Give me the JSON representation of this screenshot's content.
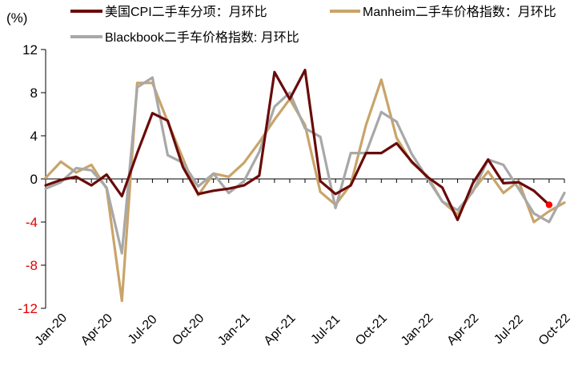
{
  "chart_data": {
    "type": "line",
    "unit_label": "(%)",
    "x": [
      "Jan-20",
      "Feb-20",
      "Mar-20",
      "Apr-20",
      "May-20",
      "Jun-20",
      "Jul-20",
      "Aug-20",
      "Sep-20",
      "Oct-20",
      "Nov-20",
      "Dec-20",
      "Jan-21",
      "Feb-21",
      "Mar-21",
      "Apr-21",
      "May-21",
      "Jun-21",
      "Jul-21",
      "Aug-21",
      "Sep-21",
      "Oct-21",
      "Nov-21",
      "Dec-21",
      "Jan-22",
      "Feb-22",
      "Mar-22",
      "Apr-22",
      "May-22",
      "Jun-22",
      "Jul-22",
      "Aug-22",
      "Sep-22",
      "Oct-22",
      "Nov-22"
    ],
    "x_tick_labels": [
      "Jan-20",
      "Apr-20",
      "Jul-20",
      "Oct-20",
      "Jan-21",
      "Apr-21",
      "Jul-21",
      "Oct-21",
      "Jan-22",
      "Apr-22",
      "Jul-22",
      "Oct-22"
    ],
    "ylim": [
      -12,
      12
    ],
    "y_ticks": [
      12,
      8,
      4,
      0,
      -4,
      -8,
      -12
    ],
    "grid": false,
    "legend_position": "top",
    "series": [
      {
        "name": "美国CPI二手车分项：月环比",
        "color": "#6b0a0a",
        "values": [
          -0.6,
          -0.1,
          0.2,
          -0.6,
          0.4,
          -1.6,
          2.4,
          6.1,
          5.4,
          1.1,
          -1.4,
          -1.1,
          -0.9,
          -0.6,
          0.3,
          9.9,
          7.4,
          10.1,
          -0.2,
          -1.4,
          -0.6,
          2.4,
          2.4,
          3.3,
          1.6,
          0.2,
          -0.8,
          -3.8,
          -0.4,
          1.8,
          -0.4,
          -0.3,
          -1.1,
          -2.4,
          null
        ],
        "end_marker_color": "#ff0000"
      },
      {
        "name": "Manheim二手车价格指数：月环比",
        "color": "#c9a46a",
        "values": [
          0.1,
          1.6,
          0.6,
          1.3,
          -0.9,
          -11.3,
          8.9,
          8.9,
          5.3,
          1.9,
          -1.5,
          0.5,
          0.2,
          1.5,
          3.4,
          5.5,
          7.4,
          5.0,
          -1.2,
          -2.4,
          -0.5,
          5.0,
          9.2,
          3.8,
          1.5,
          0.3,
          -2.1,
          -3.3,
          -1.1,
          0.7,
          -1.3,
          -0.2,
          -4.0,
          -3.0,
          -2.2
        ]
      },
      {
        "name": "Blackbook二手车价格指数: 月环比",
        "color": "#a8a8a8",
        "values": [
          -0.9,
          -0.3,
          1.0,
          0.8,
          -0.8,
          -6.9,
          8.5,
          9.4,
          2.2,
          1.5,
          -0.7,
          0.5,
          -1.3,
          -0.2,
          2.5,
          6.7,
          8.0,
          4.7,
          3.9,
          -2.7,
          2.4,
          2.4,
          6.2,
          5.3,
          2.3,
          0.1,
          -2.1,
          -2.9,
          -1.2,
          1.8,
          1.3,
          -0.9,
          -3.2,
          -4.0,
          -1.3
        ]
      }
    ]
  }
}
